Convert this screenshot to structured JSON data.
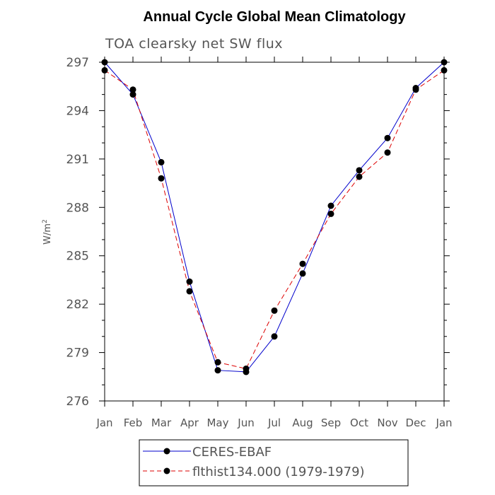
{
  "chart_data": {
    "type": "line",
    "title": "Annual Cycle Global Mean Climatology",
    "subtitle": "TOA clearsky net SW flux",
    "xlabel": "",
    "ylabel": "W/m",
    "ylabel_superscript": "2",
    "categories": [
      "Jan",
      "Feb",
      "Mar",
      "Apr",
      "May",
      "Jun",
      "Jul",
      "Aug",
      "Sep",
      "Oct",
      "Nov",
      "Dec",
      "Jan"
    ],
    "ylim": [
      276,
      297
    ],
    "yticks": [
      276,
      279,
      282,
      285,
      288,
      291,
      294,
      297
    ],
    "series": [
      {
        "name": "CERES-EBAF",
        "color": "#0000cc",
        "dash": "solid",
        "values": [
          297.0,
          295.0,
          290.8,
          283.4,
          277.9,
          277.8,
          280.0,
          283.9,
          288.1,
          290.3,
          292.3,
          295.4,
          297.0
        ]
      },
      {
        "name": "flthist134.000 (1979-1979)",
        "color": "#dd0000",
        "dash": "dashed",
        "values": [
          296.5,
          295.3,
          289.8,
          282.8,
          278.4,
          278.0,
          281.6,
          284.5,
          287.6,
          289.9,
          291.4,
          295.3,
          296.5
        ]
      }
    ],
    "legend_position": "bottom"
  }
}
